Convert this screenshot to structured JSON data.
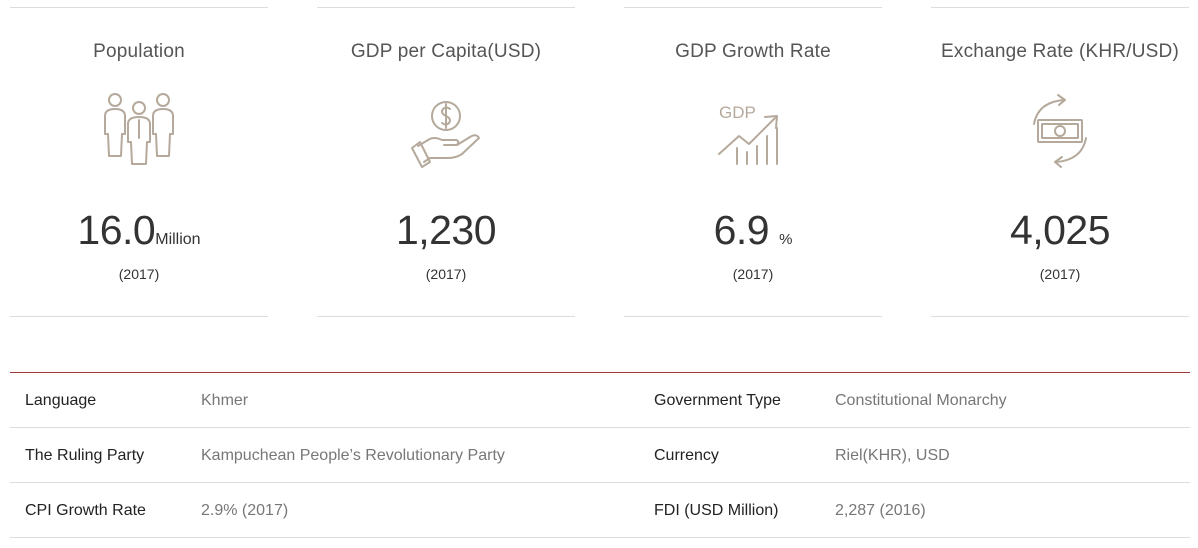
{
  "stats": [
    {
      "title": "Population",
      "value": "16.0",
      "unit": "Million",
      "year": "(2017)",
      "icon": "people-icon"
    },
    {
      "title": "GDP per Capita(USD)",
      "value": "1,230",
      "unit": "",
      "year": "(2017)",
      "icon": "coin-hand-icon"
    },
    {
      "title": "GDP Growth Rate",
      "value": "6.9",
      "unit": "%",
      "year": "(2017)",
      "icon": "gdp-growth-icon",
      "icon_text": "GDP"
    },
    {
      "title": "Exchange Rate (KHR/USD)",
      "value": "4,025",
      "unit": "",
      "year": "(2017)",
      "icon": "exchange-money-icon"
    }
  ],
  "info_rows": [
    {
      "left_label": "Language",
      "left_value": "Khmer",
      "right_label": "Government Type",
      "right_value": "Constitutional Monarchy"
    },
    {
      "left_label": "The Ruling Party",
      "left_value": "Kampuchean People’s Revolutionary Party",
      "right_label": "Currency",
      "right_value": "Riel(KHR), USD"
    },
    {
      "left_label": "CPI Growth Rate",
      "left_value": "2.9% (2017)",
      "right_label": "FDI (USD Million)",
      "right_value": "2,287 (2016)"
    }
  ],
  "colors": {
    "icon_stroke": "#b5a99c",
    "accent_line": "#a33a3a",
    "divider": "#dcdcdc"
  }
}
